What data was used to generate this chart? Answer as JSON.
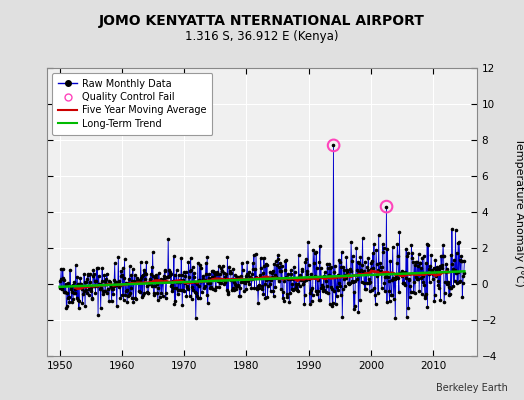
{
  "title": "JOMO KENYATTA NTERNATIONAL AIRPORT",
  "subtitle": "1.316 S, 36.912 E (Kenya)",
  "ylabel": "Temperature Anomaly (°C)",
  "credit": "Berkeley Earth",
  "xlim": [
    1948,
    2017
  ],
  "ylim": [
    -4,
    12
  ],
  "yticks": [
    -4,
    -2,
    0,
    2,
    4,
    6,
    8,
    10,
    12
  ],
  "xticks": [
    1950,
    1960,
    1970,
    1980,
    1990,
    2000,
    2010
  ],
  "bg_color": "#e0e0e0",
  "plot_bg_color": "#f0f0f0",
  "raw_line_color": "#0000cc",
  "raw_dot_color": "#000000",
  "qc_fail_color": "#ff44bb",
  "five_yr_color": "#cc0000",
  "trend_color": "#00bb00",
  "seed": 42,
  "n_points": 780,
  "start_year": 1950.0,
  "end_year": 2015.0,
  "qc_fail_points": [
    {
      "year": 1994.0,
      "value": 7.7
    },
    {
      "year": 2002.5,
      "value": 4.3
    }
  ]
}
